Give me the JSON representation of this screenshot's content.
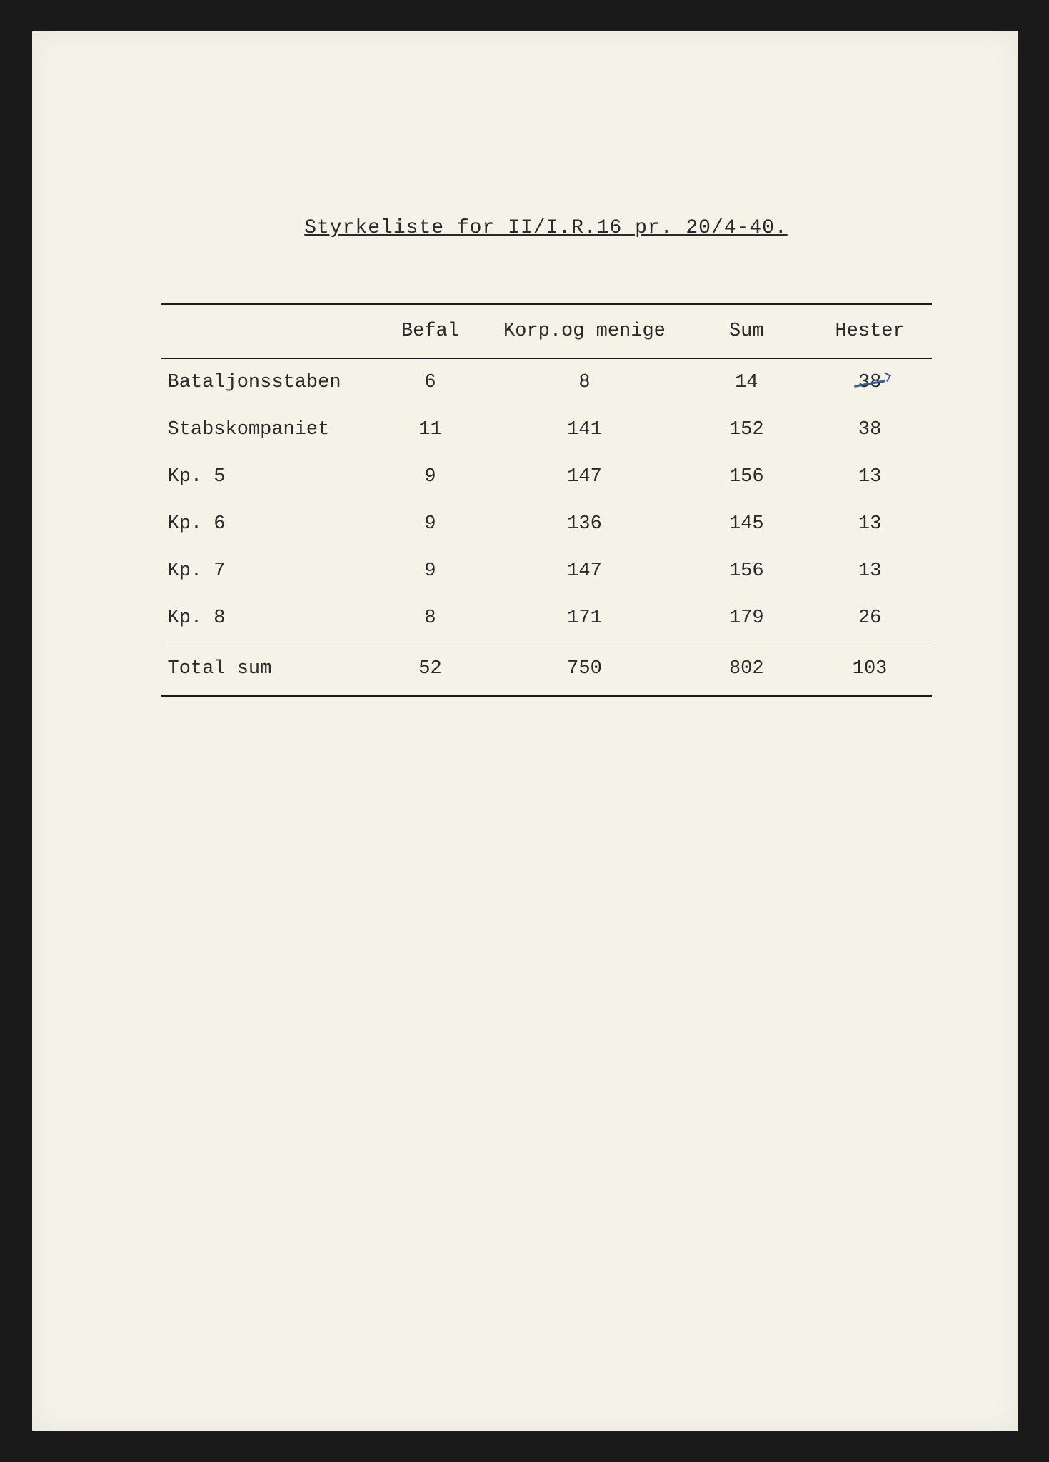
{
  "document": {
    "title": "Styrkeliste for II/I.R.16 pr. 20/4-40.",
    "type": "table",
    "background_color": "#f5f2e8",
    "text_color": "#2a2a2a",
    "border_color": "#1a1a1a",
    "strike_color": "#3a5a9a",
    "font_family": "Courier New",
    "title_fontsize": 28,
    "body_fontsize": 27,
    "columns": [
      {
        "label": "",
        "align": "left",
        "width": "28%"
      },
      {
        "label": "Befal",
        "align": "center",
        "width": "14%"
      },
      {
        "label": "Korp.og menige",
        "align": "center",
        "width": "26%"
      },
      {
        "label": "Sum",
        "align": "center",
        "width": "16%"
      },
      {
        "label": "Hester",
        "align": "center",
        "width": "16%"
      }
    ],
    "rows": [
      {
        "label": "Bataljonsstaben",
        "befal": "6",
        "korp": "8",
        "sum": "14",
        "hester": "38",
        "hester_struck": true,
        "divider": false
      },
      {
        "label": "Stabskompaniet",
        "befal": "11",
        "korp": "141",
        "sum": "152",
        "hester": "38",
        "hester_struck": false,
        "divider": false
      },
      {
        "label": "Kp. 5",
        "befal": "9",
        "korp": "147",
        "sum": "156",
        "hester": "13",
        "hester_struck": false,
        "divider": false
      },
      {
        "label": "Kp. 6",
        "befal": "9",
        "korp": "136",
        "sum": "145",
        "hester": "13",
        "hester_struck": false,
        "divider": false
      },
      {
        "label": "Kp. 7",
        "befal": "9",
        "korp": "147",
        "sum": "156",
        "hester": "13",
        "hester_struck": false,
        "divider": false
      },
      {
        "label": "Kp. 8",
        "befal": "8",
        "korp": "171",
        "sum": "179",
        "hester": "26",
        "hester_struck": false,
        "divider": true
      }
    ],
    "total": {
      "label": "Total sum",
      "befal": "52",
      "korp": "750",
      "sum": "802",
      "hester": "103"
    }
  }
}
